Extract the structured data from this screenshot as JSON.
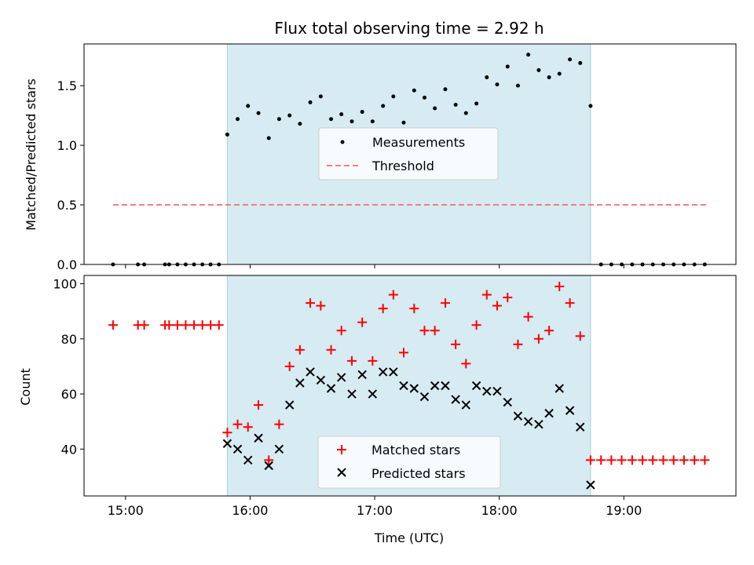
{
  "chart_data": [
    {
      "type": "scatter",
      "title": "Flux total observing time = 2.92 h",
      "ylabel": "Matched/Predicted stars",
      "xlabel": "",
      "xlim": [
        14.667,
        19.9
      ],
      "ylim": [
        0,
        1.85
      ],
      "xticks": [
        15,
        16,
        17,
        18,
        19
      ],
      "xtick_labels": [],
      "yticks": [
        0.0,
        0.5,
        1.0,
        1.5
      ],
      "ytick_labels": [
        "0.0",
        "0.5",
        "1.0",
        "1.5"
      ],
      "shaded_span": [
        15.817,
        18.733
      ],
      "threshold": {
        "value": 0.5,
        "x_start": 14.9,
        "x_end": 19.667
      },
      "legend": {
        "placement": "center",
        "entries": [
          "Measurements",
          "Threshold"
        ]
      },
      "series": [
        {
          "name": "Measurements",
          "marker": "dot",
          "color": "#000000",
          "x": [
            14.9,
            15.1,
            15.15,
            15.317,
            15.35,
            15.417,
            15.483,
            15.55,
            15.617,
            15.683,
            15.75,
            15.817,
            15.9,
            15.983,
            16.067,
            16.15,
            16.233,
            16.317,
            16.4,
            16.483,
            16.567,
            16.65,
            16.733,
            16.817,
            16.9,
            16.983,
            17.067,
            17.15,
            17.233,
            17.317,
            17.4,
            17.483,
            17.567,
            17.65,
            17.733,
            17.817,
            17.9,
            17.983,
            18.067,
            18.15,
            18.233,
            18.317,
            18.4,
            18.483,
            18.567,
            18.65,
            18.733,
            18.817,
            18.9,
            18.983,
            19.067,
            19.15,
            19.233,
            19.317,
            19.4,
            19.483,
            19.567,
            19.65
          ],
          "y": [
            0,
            0,
            0,
            0,
            0,
            0,
            0,
            0,
            0,
            0,
            0,
            1.09,
            1.22,
            1.33,
            1.27,
            1.06,
            1.22,
            1.25,
            1.18,
            1.36,
            1.41,
            1.22,
            1.26,
            1.2,
            1.28,
            1.2,
            1.33,
            1.41,
            1.19,
            1.46,
            1.4,
            1.31,
            1.47,
            1.34,
            1.27,
            1.35,
            1.57,
            1.51,
            1.66,
            1.5,
            1.76,
            1.63,
            1.57,
            1.6,
            1.72,
            1.69,
            1.33,
            0,
            0,
            0,
            0,
            0,
            0,
            0,
            0,
            0,
            0,
            0
          ]
        },
        {
          "name": "Threshold",
          "marker": "dashed-line",
          "color": "#f08080",
          "x": [
            14.9,
            19.667
          ],
          "y": [
            0.5,
            0.5
          ]
        }
      ]
    },
    {
      "type": "scatter",
      "title": "",
      "ylabel": "Count",
      "xlabel": "Time (UTC)",
      "xlim": [
        14.667,
        19.9
      ],
      "ylim": [
        23,
        103
      ],
      "xticks": [
        15,
        16,
        17,
        18,
        19
      ],
      "xtick_labels": [
        "15:00",
        "16:00",
        "17:00",
        "18:00",
        "19:00"
      ],
      "yticks": [
        40,
        60,
        80,
        100
      ],
      "ytick_labels": [
        "40",
        "60",
        "80",
        "100"
      ],
      "shaded_span": [
        15.817,
        18.733
      ],
      "legend": {
        "placement": "bottom-center",
        "entries": [
          "Matched stars",
          "Predicted stars"
        ]
      },
      "series": [
        {
          "name": "Matched stars",
          "marker": "plus",
          "color": "#ff0000",
          "x": [
            14.9,
            15.1,
            15.15,
            15.317,
            15.35,
            15.417,
            15.483,
            15.55,
            15.617,
            15.683,
            15.75,
            15.817,
            15.9,
            15.983,
            16.067,
            16.15,
            16.233,
            16.317,
            16.4,
            16.483,
            16.567,
            16.65,
            16.733,
            16.817,
            16.9,
            16.983,
            17.067,
            17.15,
            17.233,
            17.317,
            17.4,
            17.483,
            17.567,
            17.65,
            17.733,
            17.817,
            17.9,
            17.983,
            18.067,
            18.15,
            18.233,
            18.317,
            18.4,
            18.483,
            18.567,
            18.65,
            18.733,
            18.817,
            18.9,
            18.983,
            19.067,
            19.15,
            19.233,
            19.317,
            19.4,
            19.483,
            19.567,
            19.65
          ],
          "y": [
            85,
            85,
            85,
            85,
            85,
            85,
            85,
            85,
            85,
            85,
            85,
            46,
            49,
            48,
            56,
            36,
            49,
            70,
            76,
            93,
            92,
            76,
            83,
            72,
            86,
            72,
            91,
            96,
            75,
            91,
            83,
            83,
            93,
            78,
            71,
            85,
            96,
            92,
            95,
            78,
            88,
            80,
            83,
            99,
            93,
            81,
            36,
            36,
            36,
            36,
            36,
            36,
            36,
            36,
            36,
            36,
            36,
            36
          ]
        },
        {
          "name": "Predicted stars",
          "marker": "x",
          "color": "#000000",
          "x": [
            15.817,
            15.9,
            15.983,
            16.067,
            16.15,
            16.233,
            16.317,
            16.4,
            16.483,
            16.567,
            16.65,
            16.733,
            16.817,
            16.9,
            16.983,
            17.067,
            17.15,
            17.233,
            17.317,
            17.4,
            17.483,
            17.567,
            17.65,
            17.733,
            17.817,
            17.9,
            17.983,
            18.067,
            18.15,
            18.233,
            18.317,
            18.4,
            18.483,
            18.567,
            18.65,
            18.733
          ],
          "y": [
            42,
            40,
            36,
            44,
            34,
            40,
            56,
            64,
            68,
            65,
            62,
            66,
            60,
            67,
            60,
            68,
            68,
            63,
            62,
            59,
            63,
            63,
            58,
            56,
            63,
            61,
            61,
            57,
            52,
            50,
            49,
            53,
            62,
            54,
            48,
            27
          ]
        }
      ]
    }
  ]
}
